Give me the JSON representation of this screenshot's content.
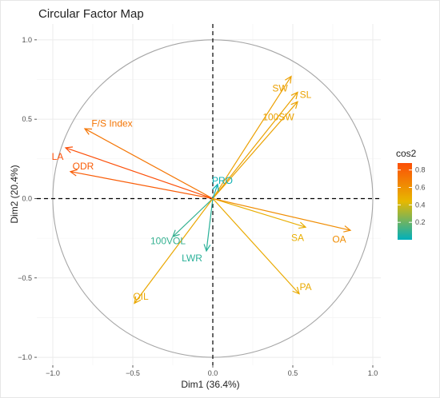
{
  "chart_data": {
    "type": "scatter",
    "subtype": "pca-variable-correlation-circle",
    "title": "Circular Factor Map",
    "xlabel": "Dim1 (36.4%)",
    "ylabel": "Dim2 (20.4%)",
    "xlim": [
      -1.1,
      1.05
    ],
    "ylim": [
      -1.05,
      1.1
    ],
    "xticks": [
      -1.0,
      -0.5,
      0.0,
      0.5,
      1.0
    ],
    "yticks": [
      -1.0,
      -0.5,
      0.0,
      0.5,
      1.0
    ],
    "xtick_labels": [
      "−1.0",
      "−0.5",
      "0.0",
      "0.5",
      "1.0"
    ],
    "ytick_labels": [
      "−1.0",
      "−0.5",
      "0.0",
      "0.5",
      "1.0"
    ],
    "grid": true,
    "unit_circle": true,
    "legend": {
      "title": "cos2",
      "placement": "right",
      "ticks": [
        0.2,
        0.4,
        0.6,
        0.8
      ],
      "tick_labels": [
        "0.2",
        "0.4",
        "0.6",
        "0.8"
      ],
      "range": [
        0.0,
        0.88
      ],
      "colors": [
        "#00AFBB",
        "#E7B800",
        "#FC4E07"
      ]
    },
    "variables": [
      {
        "name": "SW",
        "x": 0.49,
        "y": 0.77,
        "cos2": 0.54,
        "label_dx": 0.42,
        "label_dy": 0.69
      },
      {
        "name": "SL",
        "x": 0.53,
        "y": 0.67,
        "cos2": 0.53,
        "label_dx": 0.58,
        "label_dy": 0.65
      },
      {
        "name": "100SW",
        "x": 0.53,
        "y": 0.61,
        "cos2": 0.53,
        "label_dx": 0.41,
        "label_dy": 0.51
      },
      {
        "name": "F/S Index",
        "x": -0.8,
        "y": 0.44,
        "cos2": 0.72,
        "label_dx": -0.63,
        "label_dy": 0.47
      },
      {
        "name": "LA",
        "x": -0.92,
        "y": 0.32,
        "cos2": 0.88,
        "label_dx": -0.97,
        "label_dy": 0.26
      },
      {
        "name": "ODR",
        "x": -0.89,
        "y": 0.17,
        "cos2": 0.82,
        "label_dx": -0.81,
        "label_dy": 0.2
      },
      {
        "name": "PRO",
        "x": 0.03,
        "y": 0.09,
        "cos2": 0.02,
        "label_dx": 0.06,
        "label_dy": 0.11
      },
      {
        "name": "SA",
        "x": 0.58,
        "y": -0.18,
        "cos2": 0.48,
        "label_dx": 0.53,
        "label_dy": -0.25
      },
      {
        "name": "OA",
        "x": 0.86,
        "y": -0.2,
        "cos2": 0.62,
        "label_dx": 0.79,
        "label_dy": -0.26
      },
      {
        "name": "100VOL",
        "x": -0.25,
        "y": -0.24,
        "cos2": 0.1,
        "label_dx": -0.28,
        "label_dy": -0.27
      },
      {
        "name": "LWR",
        "x": -0.04,
        "y": -0.33,
        "cos2": 0.08,
        "label_dx": -0.13,
        "label_dy": -0.38
      },
      {
        "name": "PA",
        "x": 0.54,
        "y": -0.6,
        "cos2": 0.5,
        "label_dx": 0.58,
        "label_dy": -0.56
      },
      {
        "name": "OIL",
        "x": -0.49,
        "y": -0.66,
        "cos2": 0.51,
        "label_dx": -0.45,
        "label_dy": -0.62
      }
    ]
  }
}
